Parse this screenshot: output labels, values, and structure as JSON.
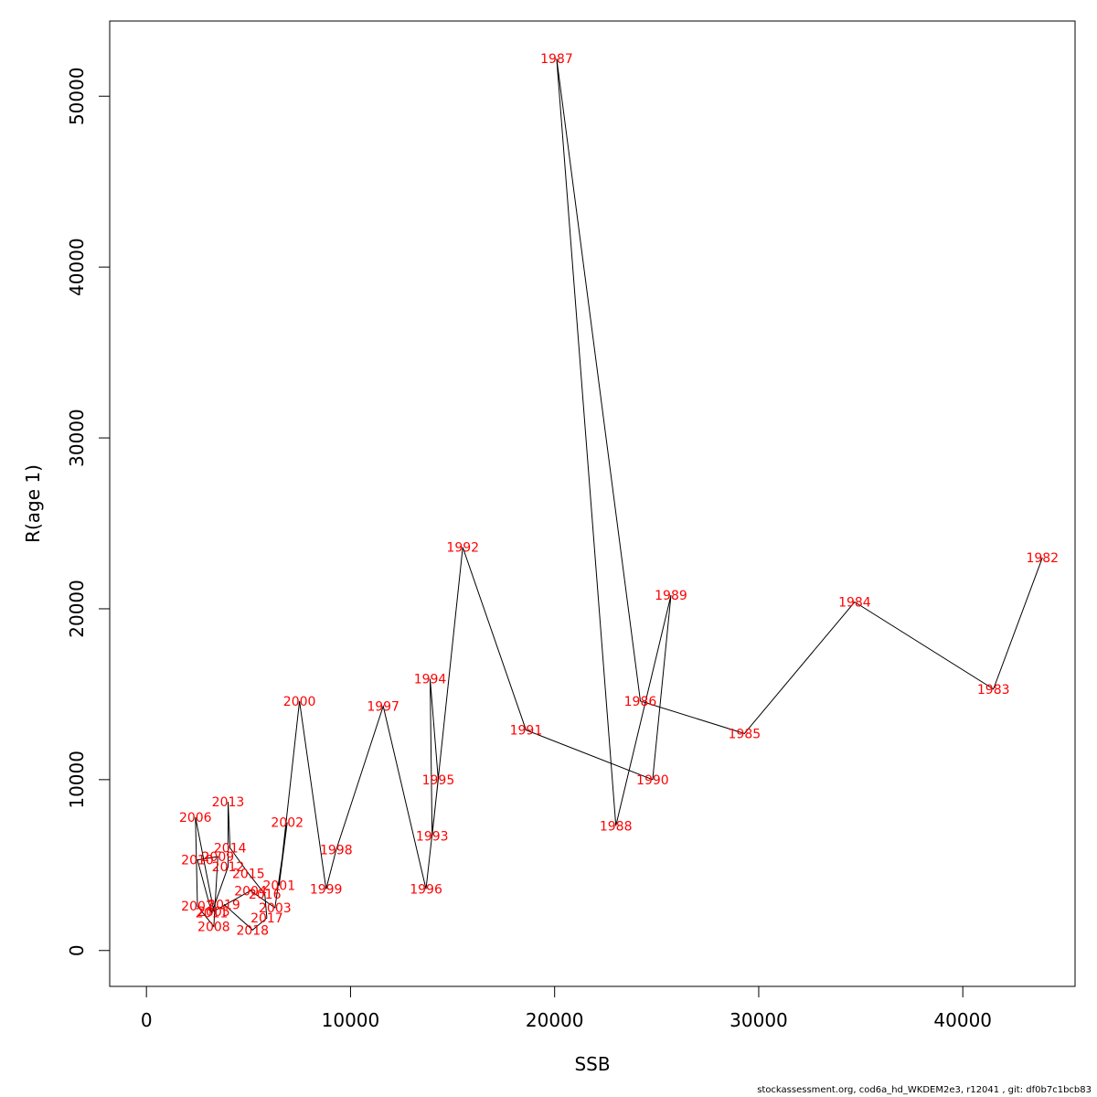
{
  "chart_data": {
    "type": "line",
    "xlabel": "SSB",
    "ylabel": "R(age 1)",
    "xlim": [
      -1800,
      45500
    ],
    "ylim": [
      -2100,
      54400
    ],
    "x_ticks": [
      0,
      10000,
      20000,
      30000,
      40000
    ],
    "y_ticks": [
      0,
      10000,
      20000,
      30000,
      40000,
      50000
    ],
    "grid": false,
    "series_color": "#000000",
    "label_color": "#ff0000",
    "points": [
      {
        "year": "1982",
        "x": 43900,
        "y": 23000
      },
      {
        "year": "1983",
        "x": 41500,
        "y": 15300
      },
      {
        "year": "1984",
        "x": 34700,
        "y": 20400
      },
      {
        "year": "1985",
        "x": 29300,
        "y": 12700
      },
      {
        "year": "1986",
        "x": 24200,
        "y": 14600
      },
      {
        "year": "1987",
        "x": 20100,
        "y": 52200
      },
      {
        "year": "1988",
        "x": 23000,
        "y": 7300
      },
      {
        "year": "1989",
        "x": 25700,
        "y": 20800
      },
      {
        "year": "1990",
        "x": 24800,
        "y": 10000
      },
      {
        "year": "1991",
        "x": 18600,
        "y": 12900
      },
      {
        "year": "1992",
        "x": 15500,
        "y": 23600
      },
      {
        "year": "1993",
        "x": 14000,
        "y": 6700
      },
      {
        "year": "1994",
        "x": 13900,
        "y": 15900
      },
      {
        "year": "1995",
        "x": 14300,
        "y": 10000
      },
      {
        "year": "1996",
        "x": 13700,
        "y": 3600
      },
      {
        "year": "1997",
        "x": 11600,
        "y": 14300
      },
      {
        "year": "1998",
        "x": 9300,
        "y": 5900
      },
      {
        "year": "1999",
        "x": 8800,
        "y": 3600
      },
      {
        "year": "2000",
        "x": 7500,
        "y": 14600
      },
      {
        "year": "2001",
        "x": 6500,
        "y": 3800
      },
      {
        "year": "2002",
        "x": 6900,
        "y": 7500
      },
      {
        "year": "2003",
        "x": 6300,
        "y": 2500
      },
      {
        "year": "2004",
        "x": 5100,
        "y": 3500
      },
      {
        "year": "2005",
        "x": 3300,
        "y": 2300
      },
      {
        "year": "2006",
        "x": 2400,
        "y": 7800
      },
      {
        "year": "2007",
        "x": 2500,
        "y": 2600
      },
      {
        "year": "2008",
        "x": 3300,
        "y": 1400
      },
      {
        "year": "2009",
        "x": 3500,
        "y": 5500
      },
      {
        "year": "2010",
        "x": 2500,
        "y": 5300
      },
      {
        "year": "2011",
        "x": 3200,
        "y": 2200
      },
      {
        "year": "2012",
        "x": 4000,
        "y": 4900
      },
      {
        "year": "2013",
        "x": 4000,
        "y": 8700
      },
      {
        "year": "2014",
        "x": 4100,
        "y": 6000
      },
      {
        "year": "2015",
        "x": 5000,
        "y": 4500
      },
      {
        "year": "2016",
        "x": 5800,
        "y": 3300
      },
      {
        "year": "2017",
        "x": 5900,
        "y": 1900
      },
      {
        "year": "2018",
        "x": 5200,
        "y": 1200
      },
      {
        "year": "2019",
        "x": 3800,
        "y": 2700
      }
    ]
  },
  "footer": {
    "text": "stockassessment.org, cod6a_hd_WKDEM2e3, r12041 , git: df0b7c1bcb83"
  }
}
